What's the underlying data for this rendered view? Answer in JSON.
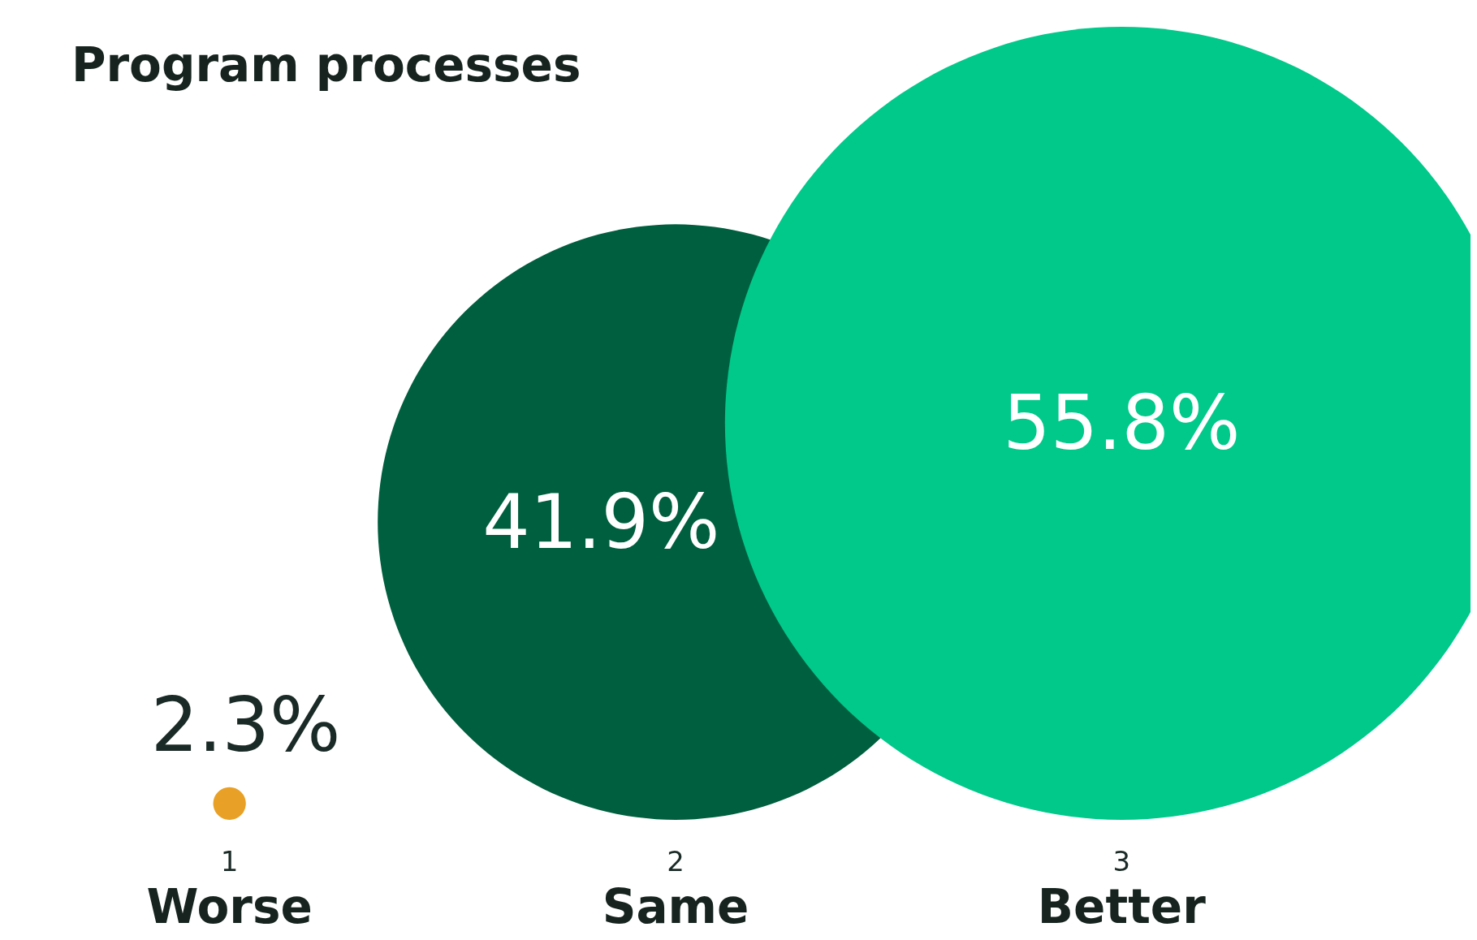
{
  "chart_data": {
    "type": "other",
    "title": "Program processes",
    "categories": [
      "Worse",
      "Same",
      "Better"
    ],
    "values": [
      2.3,
      41.9,
      55.8
    ],
    "colors": [
      "#e8a126",
      "#005f3f",
      "#00c98a"
    ],
    "value_labels": [
      "2.3%",
      "41.9%",
      "55.8%"
    ],
    "annotations": [
      {
        "text": "1",
        "x": "Worse"
      },
      {
        "text": "2",
        "x": "Same"
      },
      {
        "text": "3",
        "x": "Better"
      }
    ]
  }
}
